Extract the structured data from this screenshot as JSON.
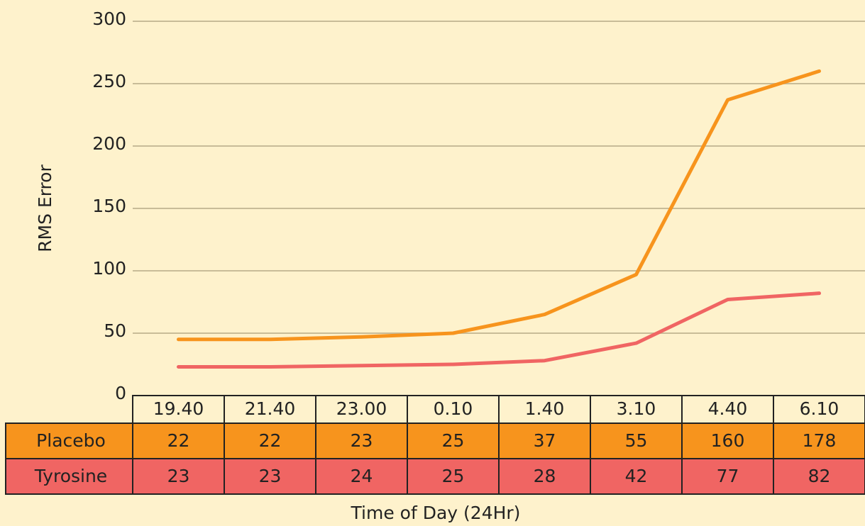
{
  "chart_data": {
    "type": "line",
    "stacked": true,
    "y_label": "RMS Error",
    "x_label": "Time of Day (24Hr)",
    "categories": [
      "19.40",
      "21.40",
      "23.00",
      "0.10",
      "1.40",
      "3.10",
      "4.40",
      "6.10"
    ],
    "series": [
      {
        "name": "Placebo",
        "color": "#f7941d",
        "values": [
          22,
          22,
          23,
          25,
          37,
          55,
          160,
          178
        ]
      },
      {
        "name": "Tyrosine",
        "color": "#f06563",
        "values": [
          23,
          23,
          24,
          25,
          28,
          42,
          77,
          82
        ]
      }
    ],
    "ylim": [
      0,
      300
    ],
    "yticks": [
      0,
      50,
      100,
      150,
      200,
      250,
      300
    ],
    "grid": true
  }
}
